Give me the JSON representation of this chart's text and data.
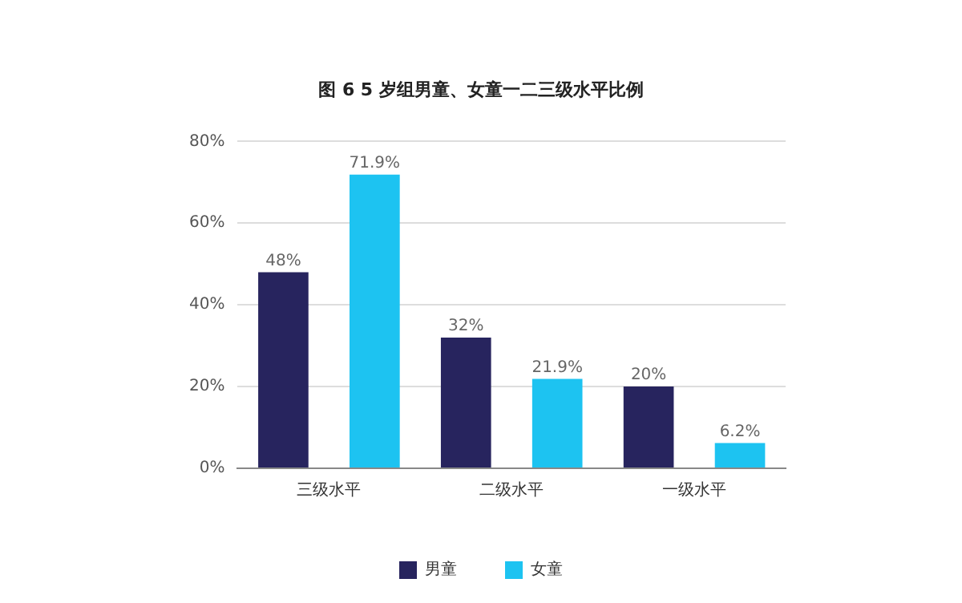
{
  "chart_data": {
    "type": "bar",
    "title": "图 6 5 岁组男童、女童一二三级水平比例",
    "categories": [
      "三级水平",
      "二级水平",
      "一级水平"
    ],
    "series": [
      {
        "name": "男童",
        "color": "#27245e",
        "values": [
          48,
          32,
          20
        ],
        "value_labels": [
          "48%",
          "32%",
          "20%"
        ]
      },
      {
        "name": "女童",
        "color": "#1dc3f1",
        "values": [
          71.9,
          21.9,
          6.2
        ],
        "value_labels": [
          "71.9%",
          "21.9%",
          "6.2%"
        ]
      }
    ],
    "ylim": [
      0,
      80
    ],
    "yticks": [
      {
        "value": 0,
        "label": "0%"
      },
      {
        "value": 20,
        "label": "20%"
      },
      {
        "value": 40,
        "label": "40%"
      },
      {
        "value": 60,
        "label": "60%"
      },
      {
        "value": 80,
        "label": "80%"
      }
    ],
    "grid": "y",
    "legend": "bottom"
  }
}
